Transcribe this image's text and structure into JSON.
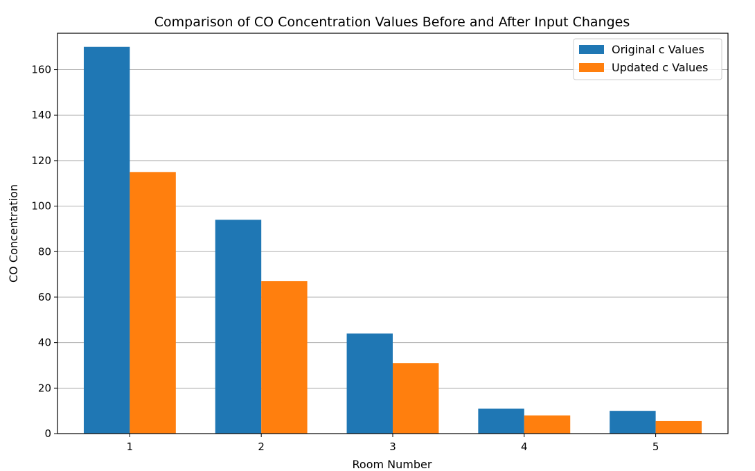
{
  "chart_data": {
    "type": "bar",
    "title": "Comparison of CO Concentration Values Before and After Input Changes",
    "xlabel": "Room Number",
    "ylabel": "CO Concentration",
    "categories": [
      "1",
      "2",
      "3",
      "4",
      "5"
    ],
    "series": [
      {
        "name": "Original c Values",
        "color": "#1f77b4",
        "values": [
          170,
          94,
          44,
          11,
          10
        ]
      },
      {
        "name": "Updated c Values",
        "color": "#ff7f0e",
        "values": [
          115,
          67,
          31,
          8,
          5.5
        ]
      }
    ],
    "ylim": [
      0,
      176
    ],
    "yticks": [
      0,
      20,
      40,
      60,
      80,
      100,
      120,
      140,
      160
    ],
    "grid": "y",
    "legend_position": "top-right"
  }
}
